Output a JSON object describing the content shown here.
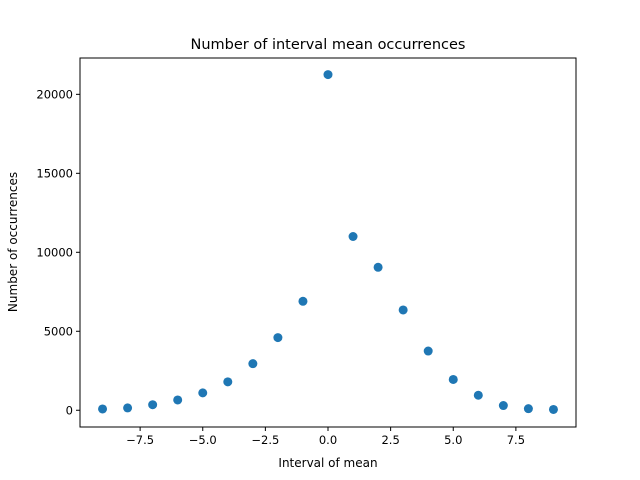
{
  "chart_data": {
    "type": "scatter",
    "title": "Number of interval mean occurrences",
    "xlabel": "Interval of mean",
    "ylabel": "Number of occurrences",
    "xlim": [
      -9.9,
      9.9
    ],
    "ylim": [
      -1060,
      22300
    ],
    "grid": false,
    "x_ticks": [
      -7.5,
      -5.0,
      -2.5,
      0.0,
      2.5,
      5.0,
      7.5
    ],
    "x_tick_labels": [
      "−7.5",
      "−5.0",
      "−2.5",
      "0.0",
      "2.5",
      "5.0",
      "7.5"
    ],
    "y_ticks": [
      0,
      5000,
      10000,
      15000,
      20000
    ],
    "y_tick_labels": [
      "0",
      "5000",
      "10000",
      "15000",
      "20000"
    ],
    "marker_color": "#1f77b4",
    "x": [
      -9,
      -8,
      -7,
      -6,
      -5,
      -4,
      -3,
      -2,
      -1,
      0,
      1,
      2,
      3,
      4,
      5,
      6,
      7,
      8,
      9
    ],
    "y": [
      80,
      150,
      350,
      650,
      1100,
      1800,
      2950,
      4600,
      6900,
      21250,
      11000,
      9050,
      6350,
      3750,
      1950,
      950,
      300,
      100,
      50
    ]
  }
}
